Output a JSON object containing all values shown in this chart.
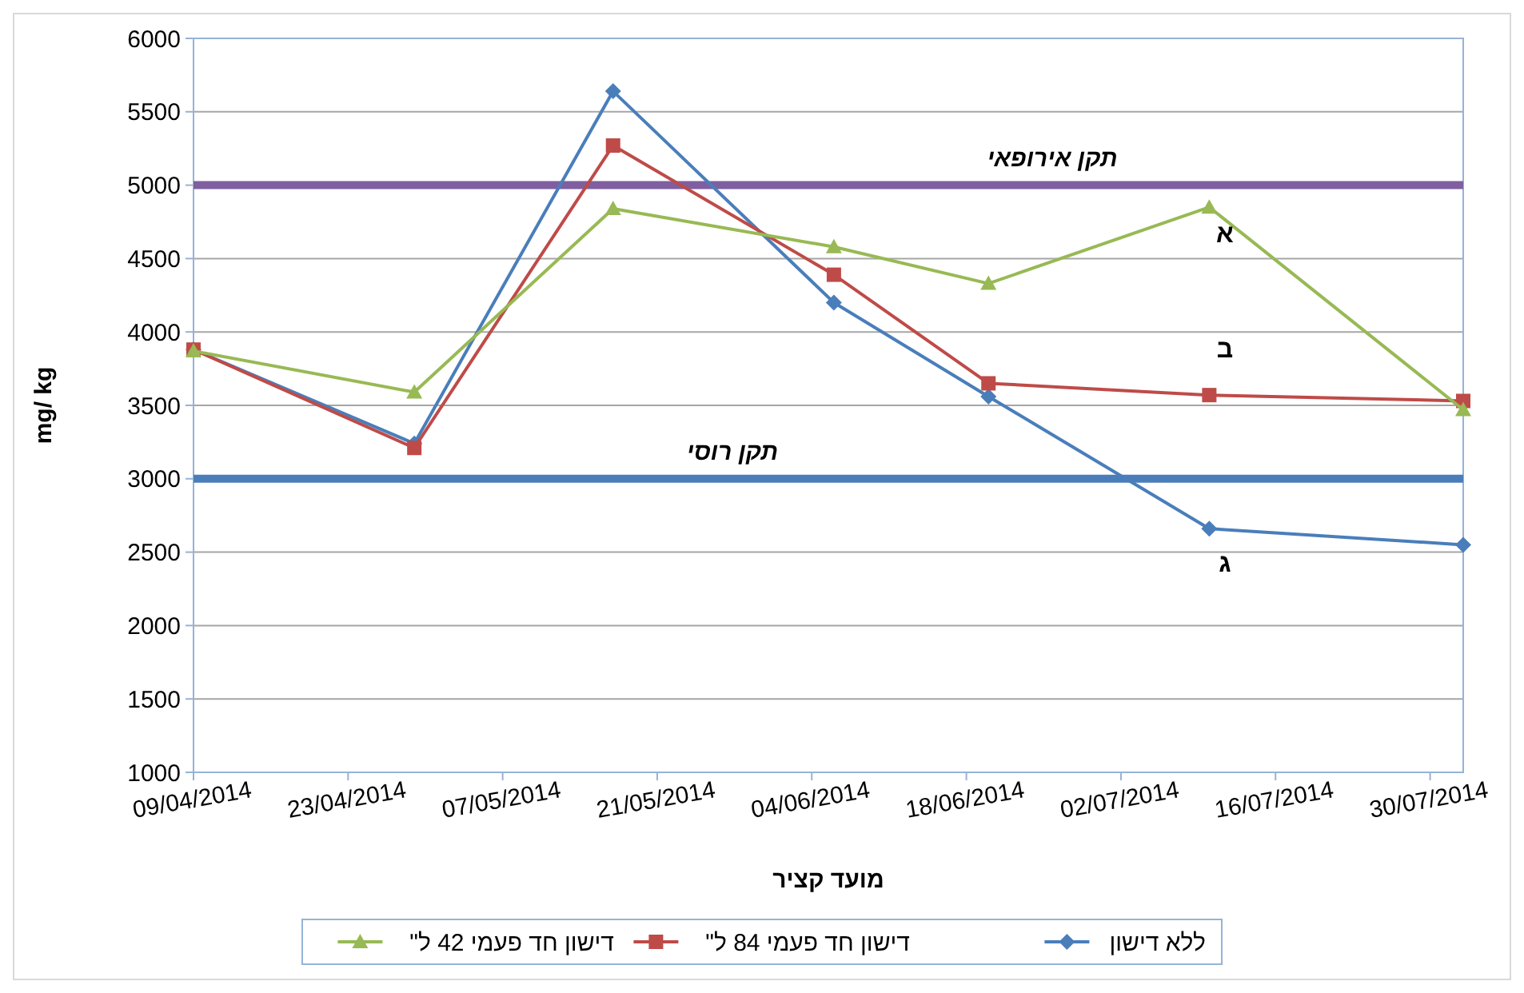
{
  "chart_data": {
    "type": "line",
    "xlabel": "מועד קציר",
    "ylabel": "mg/ kg",
    "x": [
      "2014-04-09",
      "2014-04-29",
      "2014-05-17",
      "2014-06-06",
      "2014-06-20",
      "2014-07-10",
      "2014-08-02"
    ],
    "series": [
      {
        "name": "ללא דישון",
        "color": "#4a7ebb",
        "marker": "diamond",
        "values": [
          3880,
          3240,
          5640,
          4200,
          3560,
          2660,
          2550
        ]
      },
      {
        "name": "דישון חד פעמי 84 ל\"",
        "color": "#be4b48",
        "marker": "square",
        "values": [
          3880,
          3210,
          5270,
          4390,
          3650,
          3570,
          3530
        ]
      },
      {
        "name": "דישון חד פעמי 42 ל\"",
        "color": "#98b954",
        "marker": "triangle",
        "values": [
          3870,
          3590,
          4840,
          4580,
          4330,
          4850,
          3470
        ]
      }
    ],
    "ref_lines": [
      {
        "axis": "y",
        "value": 5000,
        "label": "תקן אירופאי",
        "color": "#7f5fa0"
      },
      {
        "axis": "y",
        "value": 3000,
        "label": "תקן רוסי",
        "color": "#4a7ebb"
      }
    ],
    "annotations": [
      "א",
      "ב",
      "ג"
    ],
    "xlim": [
      "2014-04-09",
      "2014-08-02"
    ],
    "xticks": [
      {
        "value": "2014-04-09",
        "label": "09/04/2014"
      },
      {
        "value": "2014-04-23",
        "label": "23/04/2014"
      },
      {
        "value": "2014-05-07",
        "label": "07/05/2014"
      },
      {
        "value": "2014-05-21",
        "label": "21/05/2014"
      },
      {
        "value": "2014-06-04",
        "label": "04/06/2014"
      },
      {
        "value": "2014-06-18",
        "label": "18/06/2014"
      },
      {
        "value": "2014-07-02",
        "label": "02/07/2014"
      },
      {
        "value": "2014-07-16",
        "label": "16/07/2014"
      },
      {
        "value": "2014-07-30",
        "label": "30/07/2014"
      }
    ],
    "ylim": [
      1000,
      6000
    ],
    "yticks": [
      1000,
      1500,
      2000,
      2500,
      3000,
      3500,
      4000,
      4500,
      5000,
      5500,
      6000
    ],
    "grid": "y",
    "legend": "bottom"
  }
}
